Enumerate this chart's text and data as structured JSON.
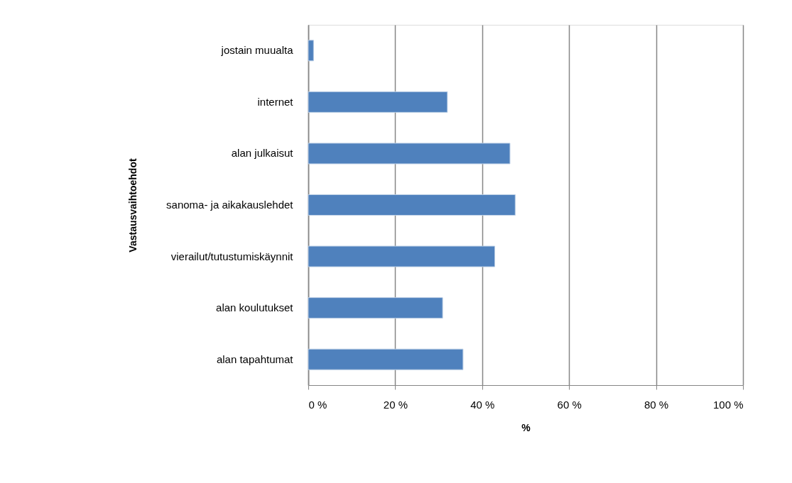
{
  "chart_data": {
    "type": "bar",
    "orientation": "horizontal",
    "xlabel": "%",
    "ylabel": "Vastausvaihtoehdot",
    "categories": [
      "jostain muualta",
      "internet",
      "alan julkaisut",
      "sanoma- ja aikakauslehdet",
      "vierailut/tutustumiskäynnit",
      "alan koulutukset",
      "alan tapahtumat"
    ],
    "values": [
      1.2,
      32.0,
      46.4,
      47.6,
      42.9,
      30.9,
      35.6
    ],
    "color": "#4f81bd",
    "xlim": [
      0,
      100
    ],
    "xticks": [
      {
        "value": 0,
        "label": "0 %"
      },
      {
        "value": 20,
        "label": "20 %"
      },
      {
        "value": 40,
        "label": "40 %"
      },
      {
        "value": 60,
        "label": "60 %"
      },
      {
        "value": 80,
        "label": "80 %"
      },
      {
        "value": 100,
        "label": "100 %"
      }
    ],
    "grid": "x"
  }
}
